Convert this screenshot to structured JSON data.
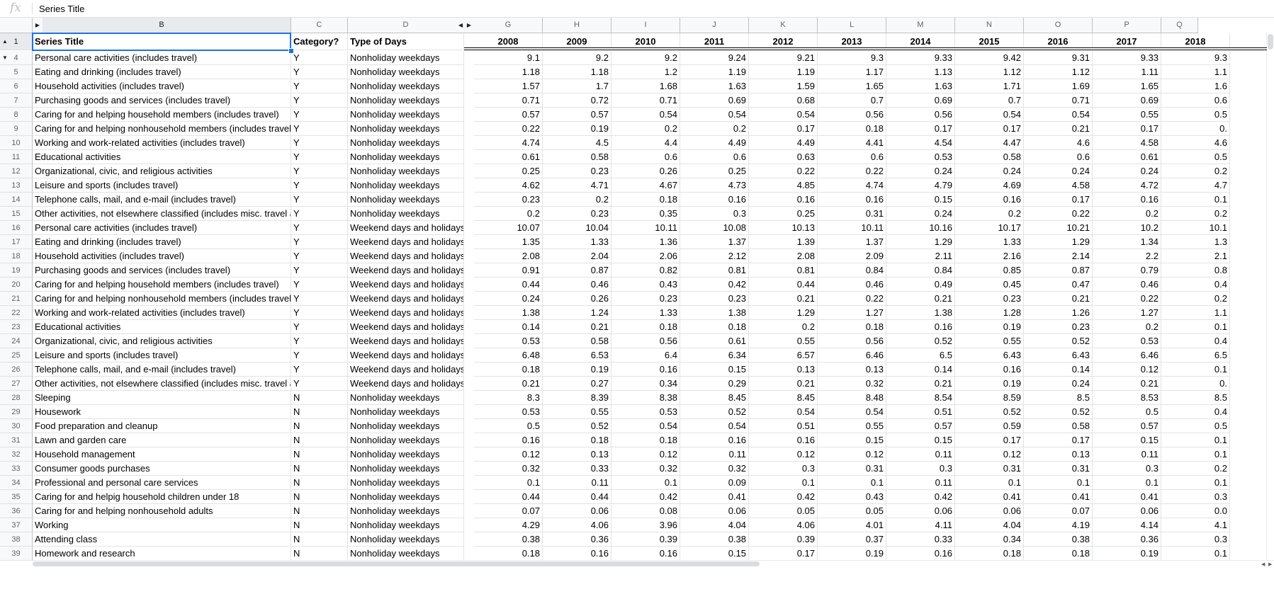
{
  "formula_bar": {
    "icon": "fx",
    "value": "Series Title"
  },
  "columns": {
    "B": "B",
    "C": "C",
    "D": "D",
    "G": "G",
    "H": "H",
    "I": "I",
    "J": "J",
    "K": "K",
    "L": "L",
    "M": "M",
    "N": "N",
    "O": "O",
    "P": "P",
    "Q": "Q"
  },
  "header_row": {
    "row_num": "1",
    "series_title": "Series Title",
    "category": "Category?",
    "type_of_days": "Type of Days",
    "years": [
      "2008",
      "2009",
      "2010",
      "2011",
      "2012",
      "2013",
      "2014",
      "2015",
      "2016",
      "2017",
      "2018"
    ]
  },
  "rows": [
    {
      "n": "4",
      "title": "Personal care activities (includes travel)",
      "cat": "Y",
      "type": "Nonholiday weekdays",
      "v": [
        "9.1",
        "9.2",
        "9.2",
        "9.24",
        "9.21",
        "9.3",
        "9.33",
        "9.42",
        "9.31",
        "9.33",
        "9.3"
      ]
    },
    {
      "n": "5",
      "title": "Eating and drinking (includes travel)",
      "cat": "Y",
      "type": "Nonholiday weekdays",
      "v": [
        "1.18",
        "1.18",
        "1.2",
        "1.19",
        "1.19",
        "1.17",
        "1.13",
        "1.12",
        "1.12",
        "1.11",
        "1.1"
      ]
    },
    {
      "n": "6",
      "title": "Household activities (includes travel)",
      "cat": "Y",
      "type": "Nonholiday weekdays",
      "v": [
        "1.57",
        "1.7",
        "1.68",
        "1.63",
        "1.59",
        "1.65",
        "1.63",
        "1.71",
        "1.69",
        "1.65",
        "1.6"
      ]
    },
    {
      "n": "7",
      "title": "Purchasing goods and services (includes travel)",
      "cat": "Y",
      "type": "Nonholiday weekdays",
      "v": [
        "0.71",
        "0.72",
        "0.71",
        "0.69",
        "0.68",
        "0.7",
        "0.69",
        "0.7",
        "0.71",
        "0.69",
        "0.6"
      ]
    },
    {
      "n": "8",
      "title": "Caring for and helping household members (includes travel)",
      "cat": "Y",
      "type": "Nonholiday weekdays",
      "v": [
        "0.57",
        "0.57",
        "0.54",
        "0.54",
        "0.54",
        "0.56",
        "0.56",
        "0.54",
        "0.54",
        "0.55",
        "0.5"
      ]
    },
    {
      "n": "9",
      "title": "Caring for and helping nonhousehold members (includes travel)",
      "cat": "Y",
      "type": "Nonholiday weekdays",
      "v": [
        "0.22",
        "0.19",
        "0.2",
        "0.2",
        "0.17",
        "0.18",
        "0.17",
        "0.17",
        "0.21",
        "0.17",
        "0."
      ]
    },
    {
      "n": "10",
      "title": "Working and work-related activities (includes travel)",
      "cat": "Y",
      "type": "Nonholiday weekdays",
      "v": [
        "4.74",
        "4.5",
        "4.4",
        "4.49",
        "4.49",
        "4.41",
        "4.54",
        "4.47",
        "4.6",
        "4.58",
        "4.6"
      ]
    },
    {
      "n": "11",
      "title": "Educational activities",
      "cat": "Y",
      "type": "Nonholiday weekdays",
      "v": [
        "0.61",
        "0.58",
        "0.6",
        "0.6",
        "0.63",
        "0.6",
        "0.53",
        "0.58",
        "0.6",
        "0.61",
        "0.5"
      ]
    },
    {
      "n": "12",
      "title": "Organizational, civic, and religious activities",
      "cat": "Y",
      "type": "Nonholiday weekdays",
      "v": [
        "0.25",
        "0.23",
        "0.26",
        "0.25",
        "0.22",
        "0.22",
        "0.24",
        "0.24",
        "0.24",
        "0.24",
        "0.2"
      ]
    },
    {
      "n": "13",
      "title": "Leisure and sports (includes travel)",
      "cat": "Y",
      "type": "Nonholiday weekdays",
      "v": [
        "4.62",
        "4.71",
        "4.67",
        "4.73",
        "4.85",
        "4.74",
        "4.79",
        "4.69",
        "4.58",
        "4.72",
        "4.7"
      ]
    },
    {
      "n": "14",
      "title": "Telephone calls, mail, and e-mail (includes travel)",
      "cat": "Y",
      "type": "Nonholiday weekdays",
      "v": [
        "0.23",
        "0.2",
        "0.18",
        "0.16",
        "0.16",
        "0.16",
        "0.15",
        "0.16",
        "0.17",
        "0.16",
        "0.1"
      ]
    },
    {
      "n": "15",
      "title": "Other activities, not elsewhere classified (includes misc. travel ai",
      "cat": "Y",
      "type": "Nonholiday weekdays",
      "v": [
        "0.2",
        "0.23",
        "0.35",
        "0.3",
        "0.25",
        "0.31",
        "0.24",
        "0.2",
        "0.22",
        "0.2",
        "0.2"
      ]
    },
    {
      "n": "16",
      "title": "Personal care activities (includes travel)",
      "cat": "Y",
      "type": "Weekend days and holidays",
      "v": [
        "10.07",
        "10.04",
        "10.11",
        "10.08",
        "10.13",
        "10.11",
        "10.16",
        "10.17",
        "10.21",
        "10.2",
        "10.1"
      ]
    },
    {
      "n": "17",
      "title": "Eating and drinking (includes travel)",
      "cat": "Y",
      "type": "Weekend days and holidays",
      "v": [
        "1.35",
        "1.33",
        "1.36",
        "1.37",
        "1.39",
        "1.37",
        "1.29",
        "1.33",
        "1.29",
        "1.34",
        "1.3"
      ]
    },
    {
      "n": "18",
      "title": "Household activities (includes travel)",
      "cat": "Y",
      "type": "Weekend days and holidays",
      "v": [
        "2.08",
        "2.04",
        "2.06",
        "2.12",
        "2.08",
        "2.09",
        "2.11",
        "2.16",
        "2.14",
        "2.2",
        "2.1"
      ]
    },
    {
      "n": "19",
      "title": "Purchasing goods and services (includes travel)",
      "cat": "Y",
      "type": "Weekend days and holidays",
      "v": [
        "0.91",
        "0.87",
        "0.82",
        "0.81",
        "0.81",
        "0.84",
        "0.84",
        "0.85",
        "0.87",
        "0.79",
        "0.8"
      ]
    },
    {
      "n": "20",
      "title": "Caring for and helping household members (includes travel)",
      "cat": "Y",
      "type": "Weekend days and holidays",
      "v": [
        "0.44",
        "0.46",
        "0.43",
        "0.42",
        "0.44",
        "0.46",
        "0.49",
        "0.45",
        "0.47",
        "0.46",
        "0.4"
      ]
    },
    {
      "n": "21",
      "title": "Caring for and helping nonhousehold members (includes travel)",
      "cat": "Y",
      "type": "Weekend days and holidays",
      "v": [
        "0.24",
        "0.26",
        "0.23",
        "0.23",
        "0.21",
        "0.22",
        "0.21",
        "0.23",
        "0.21",
        "0.22",
        "0.2"
      ]
    },
    {
      "n": "22",
      "title": "Working and work-related activities (includes travel)",
      "cat": "Y",
      "type": "Weekend days and holidays",
      "v": [
        "1.38",
        "1.24",
        "1.33",
        "1.38",
        "1.29",
        "1.27",
        "1.38",
        "1.28",
        "1.26",
        "1.27",
        "1.1"
      ]
    },
    {
      "n": "23",
      "title": "Educational activities",
      "cat": "Y",
      "type": "Weekend days and holidays",
      "v": [
        "0.14",
        "0.21",
        "0.18",
        "0.18",
        "0.2",
        "0.18",
        "0.16",
        "0.19",
        "0.23",
        "0.2",
        "0.1"
      ]
    },
    {
      "n": "24",
      "title": "Organizational, civic, and religious activities",
      "cat": "Y",
      "type": "Weekend days and holidays",
      "v": [
        "0.53",
        "0.58",
        "0.56",
        "0.61",
        "0.55",
        "0.56",
        "0.52",
        "0.55",
        "0.52",
        "0.53",
        "0.4"
      ]
    },
    {
      "n": "25",
      "title": "Leisure and sports (includes travel)",
      "cat": "Y",
      "type": "Weekend days and holidays",
      "v": [
        "6.48",
        "6.53",
        "6.4",
        "6.34",
        "6.57",
        "6.46",
        "6.5",
        "6.43",
        "6.43",
        "6.46",
        "6.5"
      ]
    },
    {
      "n": "26",
      "title": "Telephone calls, mail, and e-mail (includes travel)",
      "cat": "Y",
      "type": "Weekend days and holidays",
      "v": [
        "0.18",
        "0.19",
        "0.16",
        "0.15",
        "0.13",
        "0.13",
        "0.14",
        "0.16",
        "0.14",
        "0.12",
        "0.1"
      ]
    },
    {
      "n": "27",
      "title": "Other activities, not elsewhere classified (includes misc. travel ai",
      "cat": "Y",
      "type": "Weekend days and holidays",
      "v": [
        "0.21",
        "0.27",
        "0.34",
        "0.29",
        "0.21",
        "0.32",
        "0.21",
        "0.19",
        "0.24",
        "0.21",
        "0."
      ]
    },
    {
      "n": "28",
      "title": "Sleeping",
      "cat": "N",
      "type": "Nonholiday weekdays",
      "v": [
        "8.3",
        "8.39",
        "8.38",
        "8.45",
        "8.45",
        "8.48",
        "8.54",
        "8.59",
        "8.5",
        "8.53",
        "8.5"
      ]
    },
    {
      "n": "29",
      "title": "Housework",
      "cat": "N",
      "type": "Nonholiday weekdays",
      "v": [
        "0.53",
        "0.55",
        "0.53",
        "0.52",
        "0.54",
        "0.54",
        "0.51",
        "0.52",
        "0.52",
        "0.5",
        "0.4"
      ]
    },
    {
      "n": "30",
      "title": "Food preparation and cleanup",
      "cat": "N",
      "type": "Nonholiday weekdays",
      "v": [
        "0.5",
        "0.52",
        "0.54",
        "0.54",
        "0.51",
        "0.55",
        "0.57",
        "0.59",
        "0.58",
        "0.57",
        "0.5"
      ]
    },
    {
      "n": "31",
      "title": "Lawn and garden care",
      "cat": "N",
      "type": "Nonholiday weekdays",
      "v": [
        "0.16",
        "0.18",
        "0.18",
        "0.16",
        "0.16",
        "0.15",
        "0.15",
        "0.17",
        "0.17",
        "0.15",
        "0.1"
      ]
    },
    {
      "n": "32",
      "title": "Household management",
      "cat": "N",
      "type": "Nonholiday weekdays",
      "v": [
        "0.12",
        "0.13",
        "0.12",
        "0.11",
        "0.12",
        "0.12",
        "0.11",
        "0.12",
        "0.13",
        "0.11",
        "0.1"
      ]
    },
    {
      "n": "33",
      "title": "Consumer goods purchases",
      "cat": "N",
      "type": "Nonholiday weekdays",
      "v": [
        "0.32",
        "0.33",
        "0.32",
        "0.32",
        "0.3",
        "0.31",
        "0.3",
        "0.31",
        "0.31",
        "0.3",
        "0.2"
      ]
    },
    {
      "n": "34",
      "title": "Professional and personal care services",
      "cat": "N",
      "type": "Nonholiday weekdays",
      "v": [
        "0.1",
        "0.11",
        "0.1",
        "0.09",
        "0.1",
        "0.1",
        "0.11",
        "0.1",
        "0.1",
        "0.1",
        "0.1"
      ]
    },
    {
      "n": "35",
      "title": "Caring for and helpig household children under 18",
      "cat": "N",
      "type": "Nonholiday weekdays",
      "v": [
        "0.44",
        "0.44",
        "0.42",
        "0.41",
        "0.42",
        "0.43",
        "0.42",
        "0.41",
        "0.41",
        "0.41",
        "0.3"
      ]
    },
    {
      "n": "36",
      "title": "Caring for and helping nonhousehold adults",
      "cat": "N",
      "type": "Nonholiday weekdays",
      "v": [
        "0.07",
        "0.06",
        "0.08",
        "0.06",
        "0.05",
        "0.05",
        "0.06",
        "0.06",
        "0.07",
        "0.06",
        "0.0"
      ]
    },
    {
      "n": "37",
      "title": "Working",
      "cat": "N",
      "type": "Nonholiday weekdays",
      "v": [
        "4.29",
        "4.06",
        "3.96",
        "4.04",
        "4.06",
        "4.01",
        "4.11",
        "4.04",
        "4.19",
        "4.14",
        "4.1"
      ]
    },
    {
      "n": "38",
      "title": "Attending class",
      "cat": "N",
      "type": "Nonholiday weekdays",
      "v": [
        "0.38",
        "0.36",
        "0.39",
        "0.38",
        "0.39",
        "0.37",
        "0.33",
        "0.34",
        "0.38",
        "0.36",
        "0.3"
      ]
    },
    {
      "n": "39",
      "title": "Homework and research",
      "cat": "N",
      "type": "Nonholiday weekdays",
      "v": [
        "0.18",
        "0.16",
        "0.16",
        "0.15",
        "0.17",
        "0.19",
        "0.16",
        "0.18",
        "0.18",
        "0.19",
        "0.1"
      ]
    }
  ],
  "colors": {
    "selection": "#1a73e8",
    "header_bg": "#f8f9fa",
    "gridline": "#e2e3e3"
  }
}
